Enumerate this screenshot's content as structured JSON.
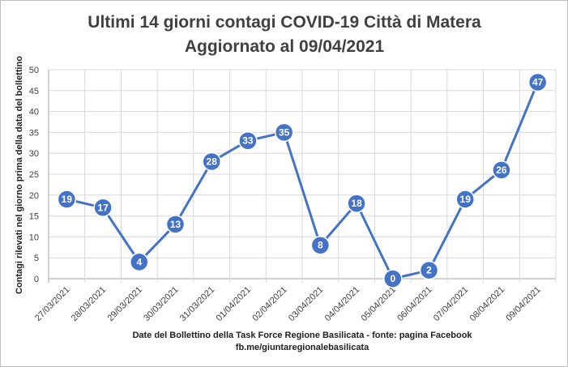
{
  "chart_data": {
    "type": "line",
    "title_line1": "Ultimi 14 giorni contagi COVID-19  Città di Matera",
    "title_line2": "Aggiornato al 09/04/2021",
    "ylabel": "Contagi rilevati nel giorno prima della data del bollettino",
    "xlabel_line1": "Date del  Bollettino  della Task Force Regione Basilicata - fonte: pagina Facebook",
    "xlabel_line2": "fb.me/giuntaregionalebasilicata",
    "ylim": [
      0,
      50
    ],
    "yticks": [
      0,
      5,
      10,
      15,
      20,
      25,
      30,
      35,
      40,
      45,
      50
    ],
    "grid": true,
    "categories": [
      "27/03/2021",
      "28/03/2021",
      "29/03/2021",
      "30/03/2021",
      "31/03/2021",
      "01/04/2021",
      "02/04/2021",
      "03/04/2021",
      "04/04/2021",
      "05/04/2021",
      "06/04/2021",
      "07/04/2021",
      "08/04/2021",
      "09/04/2021"
    ],
    "values": [
      19,
      17,
      4,
      13,
      28,
      33,
      35,
      8,
      18,
      0,
      2,
      19,
      26,
      47
    ],
    "colors": {
      "line": "#4472C4",
      "marker": "#4472C4",
      "marker_border": "#ffffff",
      "grid": "#d9d9d9",
      "axis": "#a6a6a6",
      "border": "#bfbfbf"
    }
  }
}
